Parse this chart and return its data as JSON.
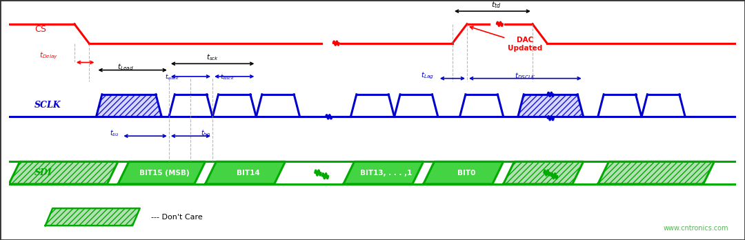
{
  "fig_width": 10.8,
  "fig_height": 3.48,
  "bg_color": "#ffffff",
  "outer_bg": "#1a1a1a",
  "cs_color": "#ff0000",
  "sclk_color": "#0000cc",
  "sdi_color": "#00aa00",
  "black": "#000000",
  "watermark": "www.cntronics.com",
  "watermark_color": "#22aa22",
  "dont_care_label": "--- Don't Care",
  "xlim": [
    0,
    100
  ],
  "ylim": [
    0,
    36
  ],
  "cs_hi": 33.0,
  "cs_lo": 30.0,
  "sclk_hi": 22.0,
  "sclk_lo": 18.5,
  "sdi_hi": 11.5,
  "sdi_lo": 8.0
}
